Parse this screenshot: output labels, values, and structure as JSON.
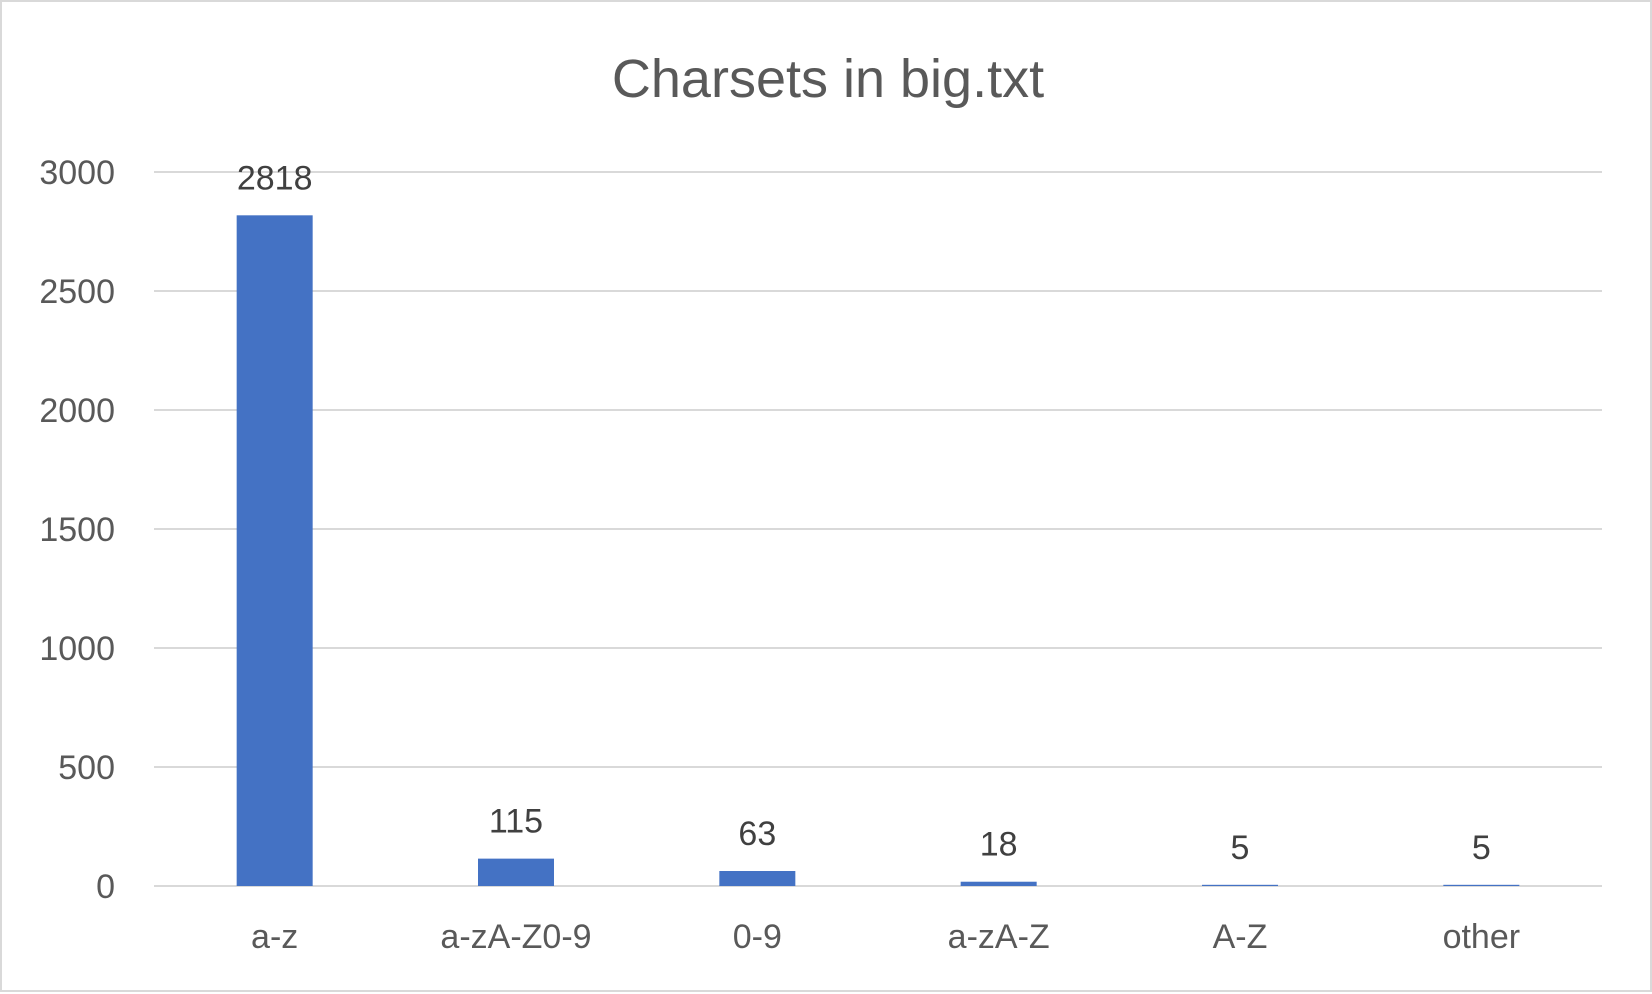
{
  "chart_data": {
    "type": "bar",
    "title": "Charsets in big.txt",
    "categories": [
      "a-z",
      "a-zA-Z0-9",
      "0-9",
      "a-zA-Z",
      "A-Z",
      "other"
    ],
    "values": [
      2818,
      115,
      63,
      18,
      5,
      5
    ],
    "xlabel": "",
    "ylabel": "",
    "ylim": [
      0,
      3000
    ],
    "yticks": [
      0,
      500,
      1000,
      1500,
      2000,
      2500,
      3000
    ],
    "grid": true,
    "legend": "none",
    "data_labels": [
      "2818",
      "115",
      "63",
      "18",
      "5",
      "5"
    ],
    "bar_color": "#4472C4"
  }
}
